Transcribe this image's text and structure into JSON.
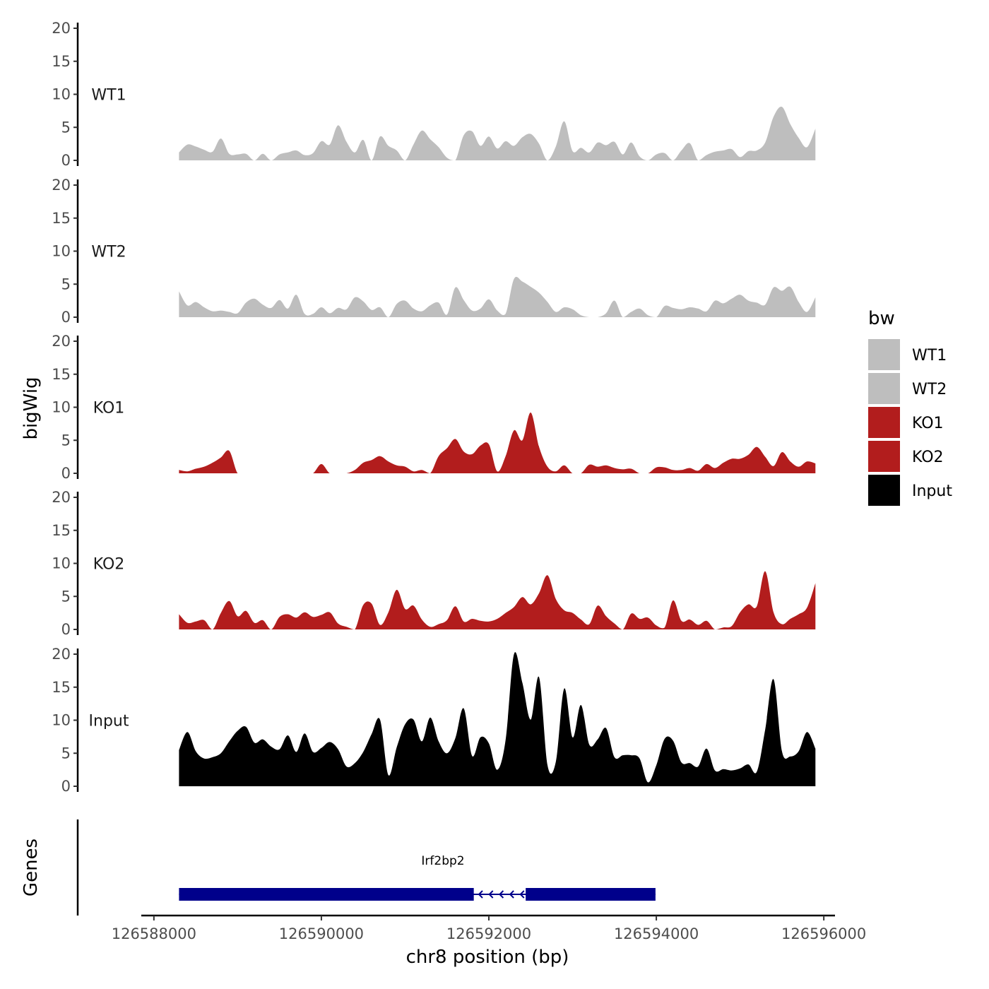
{
  "chart_data": {
    "type": "area",
    "chromosome": "chr8",
    "xlabel": "chr8 position (bp)",
    "ylabel": "bigWig",
    "genes_label": "Genes",
    "xlim": [
      126587900,
      126596100
    ],
    "x_ticks": [
      126588000,
      126590000,
      126592000,
      126594000,
      126596000
    ],
    "x_tick_labels": [
      "126588000",
      "126590000",
      "126592000",
      "126594000",
      "126596000"
    ],
    "ylim": [
      0,
      20
    ],
    "y_ticks": [
      0,
      5,
      10,
      15,
      20
    ],
    "y_tick_labels": [
      "0",
      "5",
      "10",
      "15",
      "20"
    ],
    "legend": {
      "title": "bw",
      "position": "right",
      "entries": [
        {
          "label": "WT1",
          "color": "#bebebe"
        },
        {
          "label": "WT2",
          "color": "#bebebe"
        },
        {
          "label": "KO1",
          "color": "#b21d1d"
        },
        {
          "label": "KO2",
          "color": "#b21d1d"
        },
        {
          "label": "Input",
          "color": "#000000"
        }
      ]
    },
    "series": [
      {
        "name": "WT1",
        "color": "#bebebe",
        "x": [
          126588300,
          126588400,
          126588500,
          126588600,
          126588700,
          126588800,
          126588900,
          126589000,
          126589100,
          126589200,
          126589300,
          126589400,
          126589500,
          126589600,
          126589700,
          126589800,
          126589900,
          126590000,
          126590100,
          126590200,
          126590300,
          126590400,
          126590500,
          126590600,
          126590700,
          126590800,
          126590900,
          126591000,
          126591100,
          126591200,
          126591300,
          126591400,
          126591500,
          126591600,
          126591700,
          126591800,
          126591900,
          126592000,
          126592100,
          126592200,
          126592300,
          126592400,
          126592500,
          126592600,
          126592700,
          126592800,
          126592900,
          126593000,
          126593100,
          126593200,
          126593300,
          126593400,
          126593500,
          126593600,
          126593700,
          126593800,
          126593900,
          126594000,
          126594100,
          126594200,
          126594300,
          126594400,
          126594500,
          126594600,
          126594700,
          126594800,
          126594900,
          126595000,
          126595100,
          126595200,
          126595300,
          126595400,
          126595500,
          126595600,
          126595700,
          126595800,
          126595900
        ],
        "values": [
          1.2,
          2.4,
          2.1,
          1.6,
          1.3,
          3.3,
          1.0,
          0.9,
          1.0,
          0,
          1.0,
          0,
          0.9,
          1.2,
          1.5,
          0.8,
          1.1,
          2.9,
          2.4,
          5.3,
          2.8,
          1.2,
          3.1,
          0,
          3.6,
          2.2,
          1.5,
          0,
          2.4,
          4.5,
          3.2,
          2.0,
          0.4,
          0,
          3.8,
          4.4,
          2.2,
          3.6,
          1.8,
          2.9,
          2.2,
          3.5,
          4.0,
          2.5,
          0,
          2.1,
          5.9,
          1.4,
          1.9,
          1.2,
          2.7,
          2.3,
          2.8,
          0.9,
          2.7,
          0.6,
          0,
          0.9,
          1.1,
          0,
          1.5,
          2.6,
          0,
          0.8,
          1.3,
          1.5,
          1.7,
          0.5,
          1.4,
          1.5,
          2.7,
          6.6,
          8.1,
          5.5,
          3.4,
          2.0,
          4.8
        ]
      },
      {
        "name": "WT2",
        "color": "#bebebe",
        "x": [
          126588300,
          126588400,
          126588500,
          126588600,
          126588700,
          126588800,
          126588900,
          126589000,
          126589100,
          126589200,
          126589300,
          126589400,
          126589500,
          126589600,
          126589700,
          126589800,
          126589900,
          126590000,
          126590100,
          126590200,
          126590300,
          126590400,
          126590500,
          126590600,
          126590700,
          126590800,
          126590900,
          126591000,
          126591100,
          126591200,
          126591300,
          126591400,
          126591500,
          126591600,
          126591700,
          126591800,
          126591900,
          126592000,
          126592100,
          126592200,
          126592300,
          126592400,
          126592500,
          126592600,
          126592700,
          126592800,
          126592900,
          126593000,
          126593100,
          126593200,
          126593300,
          126593400,
          126593500,
          126593600,
          126593700,
          126593800,
          126593900,
          126594000,
          126594100,
          126594200,
          126594300,
          126594400,
          126594500,
          126594600,
          126594700,
          126594800,
          126594900,
          126595000,
          126595100,
          126595200,
          126595300,
          126595400,
          126595500,
          126595600,
          126595700,
          126595800,
          126595900
        ],
        "values": [
          3.9,
          1.8,
          2.3,
          1.5,
          0.9,
          1.0,
          0.8,
          0.6,
          2.2,
          2.8,
          1.9,
          1.4,
          2.6,
          1.3,
          3.4,
          0.5,
          0.5,
          1.5,
          0.6,
          1.4,
          1.2,
          3.0,
          2.4,
          1.1,
          1.5,
          0,
          2.0,
          2.5,
          1.3,
          0.9,
          1.8,
          2.2,
          0.4,
          4.5,
          2.6,
          1.0,
          1.3,
          2.7,
          1.0,
          0.5,
          5.8,
          5.4,
          4.6,
          3.7,
          2.3,
          0.8,
          1.5,
          1.2,
          0.3,
          0,
          0,
          0.6,
          2.5,
          0,
          0.8,
          1.3,
          0.3,
          0,
          1.7,
          1.4,
          1.2,
          1.5,
          1.3,
          0.9,
          2.5,
          2.1,
          2.8,
          3.4,
          2.5,
          2.2,
          1.9,
          4.5,
          4.0,
          4.6,
          2.3,
          0.8,
          3.0
        ]
      },
      {
        "name": "KO1",
        "color": "#b21d1d",
        "x": [
          126588300,
          126588400,
          126588500,
          126588600,
          126588700,
          126588800,
          126588900,
          126589000,
          126589100,
          126589200,
          126589300,
          126589400,
          126589500,
          126589600,
          126589700,
          126589800,
          126589900,
          126590000,
          126590100,
          126590200,
          126590300,
          126590400,
          126590500,
          126590600,
          126590700,
          126590800,
          126590900,
          126591000,
          126591100,
          126591200,
          126591300,
          126591400,
          126591500,
          126591600,
          126591700,
          126591800,
          126591900,
          126592000,
          126592100,
          126592200,
          126592300,
          126592400,
          126592500,
          126592600,
          126592700,
          126592800,
          126592900,
          126593000,
          126593100,
          126593200,
          126593300,
          126593400,
          126593500,
          126593600,
          126593700,
          126593800,
          126593900,
          126594000,
          126594100,
          126594200,
          126594300,
          126594400,
          126594500,
          126594600,
          126594700,
          126594800,
          126594900,
          126595000,
          126595100,
          126595200,
          126595300,
          126595400,
          126595500,
          126595600,
          126595700,
          126595800,
          126595900
        ],
        "values": [
          0.5,
          0.3,
          0.7,
          1.0,
          1.6,
          2.4,
          3.4,
          0,
          0,
          0,
          0,
          0,
          0,
          0,
          0,
          0,
          0,
          1.4,
          0,
          0,
          0,
          0.5,
          1.6,
          2.0,
          2.6,
          1.8,
          1.2,
          1.0,
          0.3,
          0.5,
          0,
          2.6,
          3.8,
          5.2,
          3.3,
          2.9,
          4.2,
          4.4,
          0.3,
          2.6,
          6.5,
          5.0,
          9.2,
          4.0,
          1.0,
          0.3,
          1.2,
          0,
          0,
          1.3,
          1.0,
          1.2,
          0.8,
          0.6,
          0.7,
          0,
          0,
          0.9,
          0.9,
          0.5,
          0.5,
          0.8,
          0.4,
          1.4,
          0.8,
          1.6,
          2.2,
          2.2,
          2.8,
          4.0,
          2.5,
          1.1,
          3.2,
          1.8,
          1.0,
          1.8,
          1.5
        ]
      },
      {
        "name": "KO2",
        "color": "#b21d1d",
        "x": [
          126588300,
          126588400,
          126588500,
          126588600,
          126588700,
          126588800,
          126588900,
          126589000,
          126589100,
          126589200,
          126589300,
          126589400,
          126589500,
          126589600,
          126589700,
          126589800,
          126589900,
          126590000,
          126590100,
          126590200,
          126590300,
          126590400,
          126590500,
          126590600,
          126590700,
          126590800,
          126590900,
          126591000,
          126591100,
          126591200,
          126591300,
          126591400,
          126591500,
          126591600,
          126591700,
          126591800,
          126591900,
          126592000,
          126592100,
          126592200,
          126592300,
          126592400,
          126592500,
          126592600,
          126592700,
          126592800,
          126592900,
          126593000,
          126593100,
          126593200,
          126593300,
          126593400,
          126593500,
          126593600,
          126593700,
          126593800,
          126593900,
          126594000,
          126594100,
          126594200,
          126594300,
          126594400,
          126594500,
          126594600,
          126594700,
          126594800,
          126594900,
          126595000,
          126595100,
          126595200,
          126595300,
          126595400,
          126595500,
          126595600,
          126595700,
          126595800,
          126595900
        ],
        "values": [
          2.3,
          1.0,
          1.2,
          1.4,
          0,
          2.5,
          4.3,
          2.0,
          2.8,
          1.0,
          1.4,
          0,
          1.9,
          2.3,
          1.8,
          2.6,
          1.9,
          2.2,
          2.6,
          0.9,
          0.4,
          0,
          3.7,
          3.9,
          0.7,
          2.6,
          6.0,
          3.1,
          3.6,
          1.5,
          0.4,
          0.8,
          1.4,
          3.5,
          1.2,
          1.6,
          1.3,
          1.2,
          1.6,
          2.5,
          3.4,
          4.9,
          3.8,
          5.5,
          8.2,
          4.6,
          2.9,
          2.5,
          1.5,
          0.8,
          3.6,
          2.0,
          0.9,
          0,
          2.4,
          1.6,
          1.8,
          0.6,
          0.3,
          4.4,
          1.3,
          1.5,
          0.7,
          1.3,
          0,
          0.3,
          0.5,
          2.6,
          3.8,
          3.5,
          8.8,
          2.6,
          0.8,
          1.6,
          2.3,
          3.3,
          7.0
        ]
      },
      {
        "name": "Input",
        "color": "#000000",
        "x": [
          126588300,
          126588400,
          126588500,
          126588600,
          126588700,
          126588800,
          126588900,
          126589000,
          126589100,
          126589200,
          126589300,
          126589400,
          126589500,
          126589600,
          126589700,
          126589800,
          126589900,
          126590000,
          126590100,
          126590200,
          126590300,
          126590400,
          126590500,
          126590600,
          126590700,
          126590800,
          126590900,
          126591000,
          126591100,
          126591200,
          126591300,
          126591400,
          126591500,
          126591600,
          126591700,
          126591800,
          126591900,
          126592000,
          126592100,
          126592200,
          126592300,
          126592400,
          126592500,
          126592600,
          126592700,
          126592800,
          126592900,
          126593000,
          126593100,
          126593200,
          126593300,
          126593400,
          126593500,
          126593600,
          126593700,
          126593800,
          126593900,
          126594000,
          126594100,
          126594200,
          126594300,
          126594400,
          126594500,
          126594600,
          126594700,
          126594800,
          126594900,
          126595000,
          126595100,
          126595200,
          126595300,
          126595400,
          126595500,
          126595600,
          126595700,
          126595800,
          126595900
        ],
        "values": [
          5.5,
          8.2,
          5.3,
          4.2,
          4.4,
          5.0,
          6.8,
          8.4,
          9.0,
          6.6,
          7.1,
          6.0,
          5.6,
          7.7,
          5.2,
          8.0,
          5.2,
          5.8,
          6.7,
          5.6,
          3.0,
          3.5,
          5.2,
          7.9,
          10.1,
          1.7,
          5.9,
          9.4,
          10.1,
          6.8,
          10.4,
          6.8,
          5.0,
          7.3,
          11.8,
          4.6,
          7.4,
          6.5,
          2.5,
          7.0,
          20.0,
          15.7,
          10.1,
          16.5,
          3.2,
          3.7,
          14.8,
          7.4,
          12.3,
          6.3,
          7.1,
          8.8,
          4.4,
          4.7,
          4.7,
          4.2,
          0.6,
          3.2,
          7.2,
          6.9,
          3.6,
          3.5,
          3.0,
          5.7,
          2.4,
          2.6,
          2.4,
          2.7,
          3.3,
          2.2,
          8.6,
          16.2,
          5.3,
          4.5,
          5.3,
          8.2,
          5.7
        ]
      }
    ],
    "genes": [
      {
        "name": "Irf2bp2",
        "strand": "-",
        "start": 126588300,
        "end": 126593990,
        "exons": [
          [
            126588300,
            126591820
          ],
          [
            126592440,
            126593990
          ]
        ],
        "color": "#00008b"
      }
    ]
  }
}
